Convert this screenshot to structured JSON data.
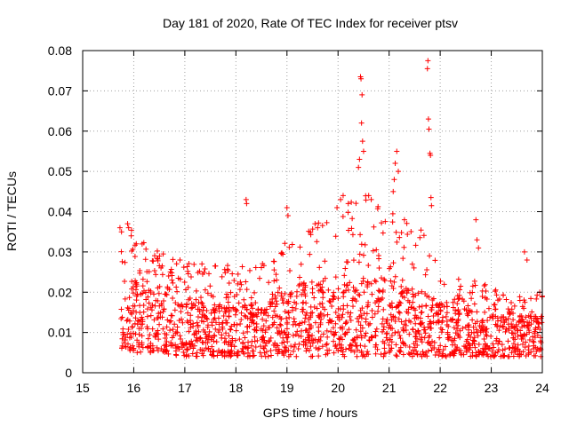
{
  "chart_data": {
    "type": "scatter",
    "title": "Day 181 of 2020, Rate Of TEC Index for receiver ptsv",
    "xlabel": "GPS time / hours",
    "ylabel": "ROTI / TECUs",
    "xlim": [
      15,
      24
    ],
    "ylim": [
      0,
      0.08
    ],
    "xticks": [
      "15",
      "16",
      "17",
      "18",
      "19",
      "20",
      "21",
      "22",
      "23",
      "24"
    ],
    "yticks": [
      "0",
      "0.01",
      "0.02",
      "0.03",
      "0.04",
      "0.05",
      "0.06",
      "0.07",
      "0.08"
    ],
    "grid": true,
    "marker": "+",
    "marker_color": "#ff0000",
    "series": [
      {
        "name": "ROTI",
        "envelope": [
          {
            "hour": 15.75,
            "base": 0.006,
            "spread": 0.012,
            "upper": 0.036
          },
          {
            "hour": 16.0,
            "base": 0.005,
            "spread": 0.018,
            "upper": 0.038
          },
          {
            "hour": 16.5,
            "base": 0.005,
            "spread": 0.016,
            "upper": 0.03
          },
          {
            "hour": 17.0,
            "base": 0.004,
            "spread": 0.013,
            "upper": 0.028
          },
          {
            "hour": 17.5,
            "base": 0.004,
            "spread": 0.014,
            "upper": 0.028
          },
          {
            "hour": 18.0,
            "base": 0.004,
            "spread": 0.012,
            "upper": 0.026
          },
          {
            "hour": 18.5,
            "base": 0.004,
            "spread": 0.014,
            "upper": 0.028
          },
          {
            "hour": 19.0,
            "base": 0.004,
            "spread": 0.016,
            "upper": 0.035
          },
          {
            "hour": 19.5,
            "base": 0.004,
            "spread": 0.018,
            "upper": 0.037
          },
          {
            "hour": 20.0,
            "base": 0.004,
            "spread": 0.02,
            "upper": 0.04
          },
          {
            "hour": 20.5,
            "base": 0.004,
            "spread": 0.02,
            "upper": 0.045
          },
          {
            "hour": 21.0,
            "base": 0.004,
            "spread": 0.018,
            "upper": 0.04
          },
          {
            "hour": 21.5,
            "base": 0.004,
            "spread": 0.017,
            "upper": 0.038
          },
          {
            "hour": 22.0,
            "base": 0.004,
            "spread": 0.014,
            "upper": 0.028
          },
          {
            "hour": 22.5,
            "base": 0.004,
            "spread": 0.012,
            "upper": 0.024
          },
          {
            "hour": 23.0,
            "base": 0.004,
            "spread": 0.012,
            "upper": 0.022
          },
          {
            "hour": 23.5,
            "base": 0.004,
            "spread": 0.011,
            "upper": 0.02
          },
          {
            "hour": 24.0,
            "base": 0.004,
            "spread": 0.01,
            "upper": 0.02
          }
        ],
        "spikes": [
          {
            "x": 15.73,
            "y": 0.036
          },
          {
            "x": 15.76,
            "y": 0.035
          },
          {
            "x": 15.88,
            "y": 0.037
          },
          {
            "x": 15.9,
            "y": 0.036
          },
          {
            "x": 15.95,
            "y": 0.034
          },
          {
            "x": 16.05,
            "y": 0.032
          },
          {
            "x": 18.2,
            "y": 0.043
          },
          {
            "x": 18.21,
            "y": 0.042
          },
          {
            "x": 19.0,
            "y": 0.041
          },
          {
            "x": 19.02,
            "y": 0.039
          },
          {
            "x": 19.55,
            "y": 0.037
          },
          {
            "x": 19.6,
            "y": 0.036
          },
          {
            "x": 19.98,
            "y": 0.041
          },
          {
            "x": 20.05,
            "y": 0.043
          },
          {
            "x": 20.1,
            "y": 0.044
          },
          {
            "x": 20.2,
            "y": 0.042
          },
          {
            "x": 20.4,
            "y": 0.051
          },
          {
            "x": 20.42,
            "y": 0.053
          },
          {
            "x": 20.44,
            "y": 0.0735
          },
          {
            "x": 20.45,
            "y": 0.073
          },
          {
            "x": 20.46,
            "y": 0.062
          },
          {
            "x": 20.47,
            "y": 0.069
          },
          {
            "x": 20.48,
            "y": 0.0575
          },
          {
            "x": 20.5,
            "y": 0.055
          },
          {
            "x": 20.6,
            "y": 0.044
          },
          {
            "x": 20.65,
            "y": 0.043
          },
          {
            "x": 21.08,
            "y": 0.045
          },
          {
            "x": 21.1,
            "y": 0.048
          },
          {
            "x": 21.12,
            "y": 0.052
          },
          {
            "x": 21.15,
            "y": 0.055
          },
          {
            "x": 21.18,
            "y": 0.05
          },
          {
            "x": 21.3,
            "y": 0.038
          },
          {
            "x": 21.75,
            "y": 0.0755
          },
          {
            "x": 21.76,
            "y": 0.0775
          },
          {
            "x": 21.77,
            "y": 0.063
          },
          {
            "x": 21.78,
            "y": 0.0605
          },
          {
            "x": 21.8,
            "y": 0.0545
          },
          {
            "x": 21.81,
            "y": 0.054
          },
          {
            "x": 21.82,
            "y": 0.0435
          },
          {
            "x": 21.83,
            "y": 0.0415
          },
          {
            "x": 22.7,
            "y": 0.038
          },
          {
            "x": 22.72,
            "y": 0.033
          },
          {
            "x": 22.75,
            "y": 0.031
          },
          {
            "x": 23.65,
            "y": 0.03
          },
          {
            "x": 23.7,
            "y": 0.028
          },
          {
            "x": 23.95,
            "y": 0.02
          },
          {
            "x": 24.0,
            "y": 0.019
          }
        ],
        "scatter_density": 1800
      }
    ]
  }
}
